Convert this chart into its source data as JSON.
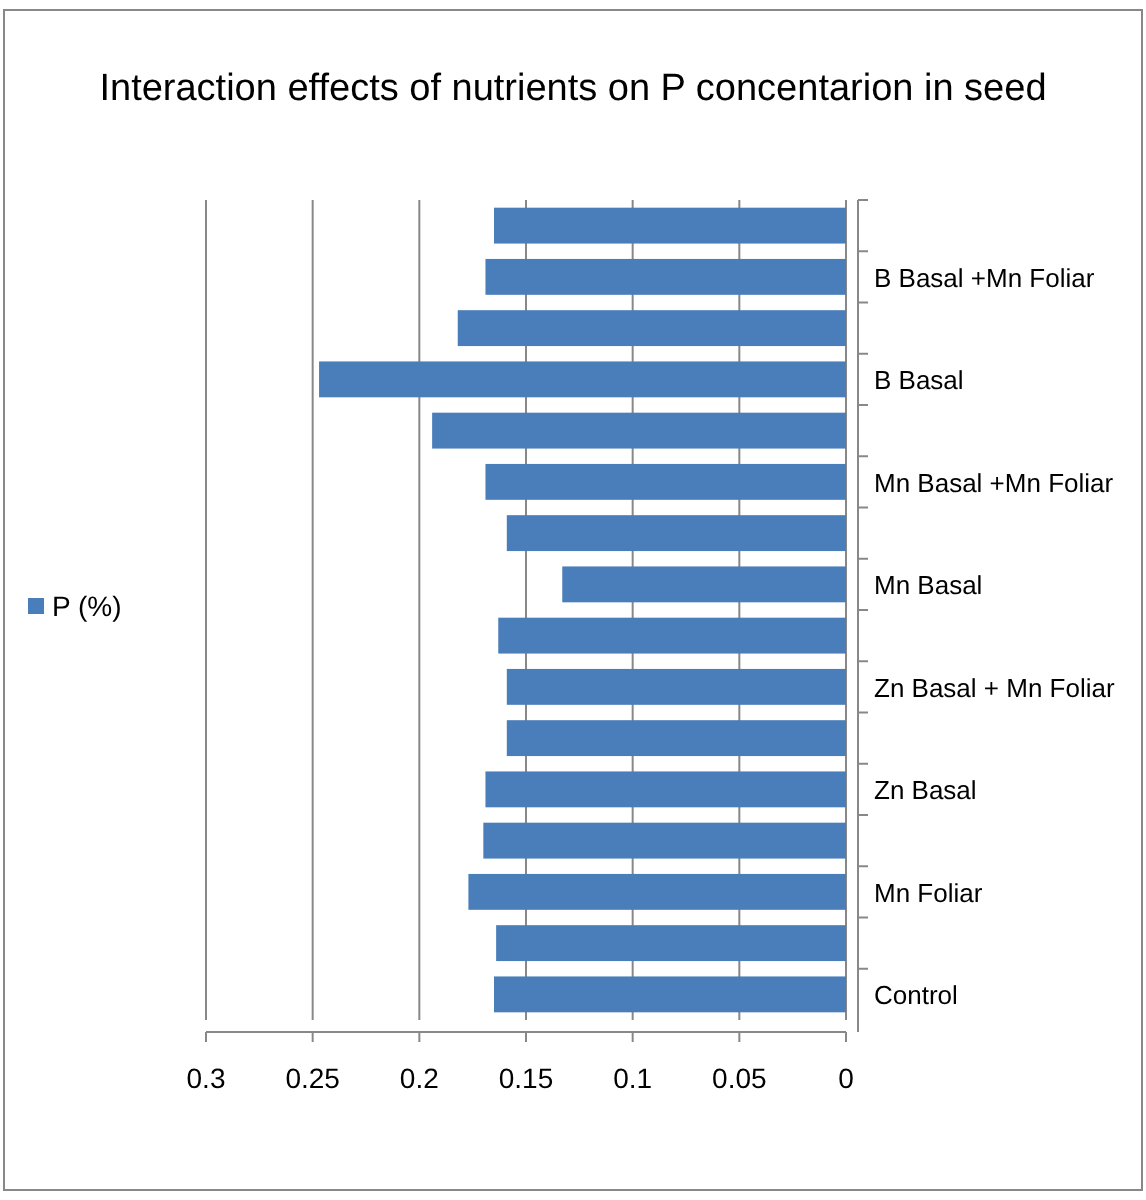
{
  "chart_data": {
    "type": "bar",
    "orientation": "horizontal",
    "title": "Interaction effects of nutrients on P concentarion in seed",
    "categories": [
      null,
      "B Basal +Mn Foliar",
      null,
      "B Basal",
      null,
      "Mn Basal +Mn Foliar",
      null,
      "Mn Basal",
      null,
      "Zn Basal + Mn Foliar",
      null,
      "Zn Basal",
      null,
      "Mn Foliar",
      null,
      "Control"
    ],
    "series": [
      {
        "name": "P (%)",
        "color": "#4a7ebb",
        "values": [
          0.165,
          0.169,
          0.182,
          0.247,
          0.194,
          0.169,
          0.159,
          0.133,
          0.163,
          0.159,
          0.159,
          0.169,
          0.17,
          0.177,
          0.164,
          0.165
        ]
      }
    ],
    "xlim": [
      0.3,
      0
    ],
    "xticks": [
      0.3,
      0.25,
      0.2,
      0.15,
      0.1,
      0.05,
      0
    ],
    "grid": "x",
    "legend": "left"
  }
}
